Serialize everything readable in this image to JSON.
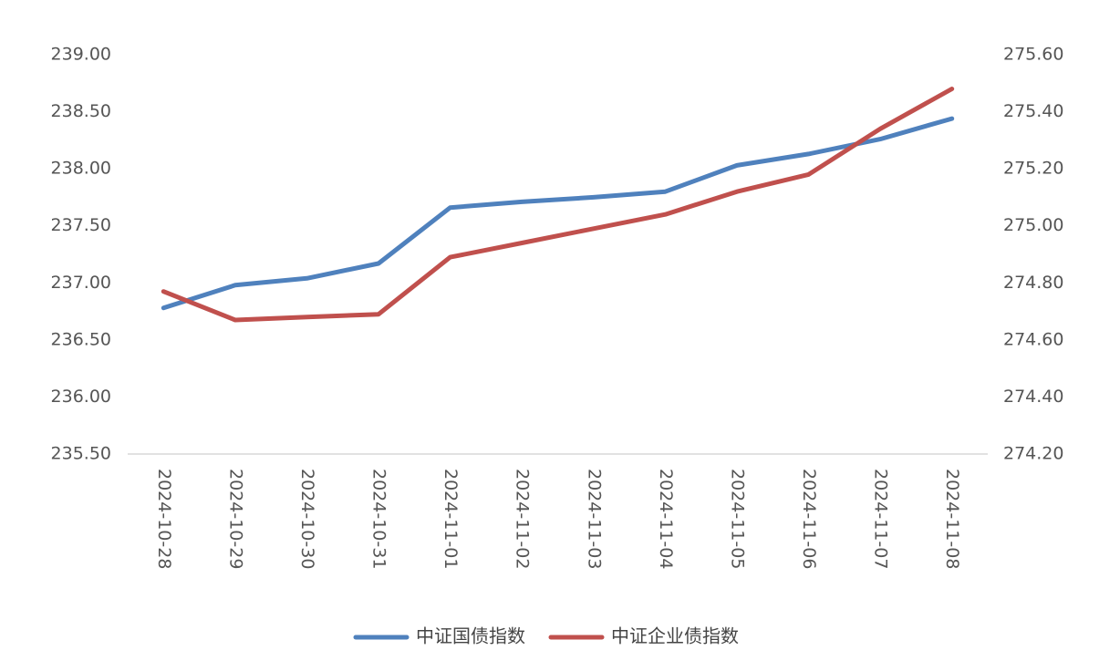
{
  "chart_data": {
    "type": "line",
    "categories": [
      "2024-10-28",
      "2024-10-29",
      "2024-10-30",
      "2024-10-31",
      "2024-11-01",
      "2024-11-02",
      "2024-11-03",
      "2024-11-04",
      "2024-11-05",
      "2024-11-06",
      "2024-11-07",
      "2024-11-08"
    ],
    "series": [
      {
        "name": "中证国债指数",
        "axis": "left",
        "color": "#4F81BD",
        "values": [
          236.78,
          236.98,
          237.04,
          237.17,
          237.66,
          237.71,
          237.75,
          237.8,
          238.03,
          238.13,
          238.26,
          238.44
        ]
      },
      {
        "name": "中证企业债指数",
        "axis": "right",
        "color": "#C0504D",
        "values": [
          274.77,
          274.67,
          274.68,
          274.69,
          274.89,
          274.94,
          274.99,
          275.04,
          275.12,
          275.18,
          275.34,
          275.48
        ]
      }
    ],
    "left_axis": {
      "min": 235.5,
      "max": 239.0,
      "step": 0.5,
      "tick_labels": [
        "235.50",
        "236.00",
        "236.50",
        "237.00",
        "237.50",
        "238.00",
        "238.50",
        "239.00"
      ]
    },
    "right_axis": {
      "min": 274.2,
      "max": 275.6,
      "step": 0.2,
      "tick_labels": [
        "274.20",
        "274.40",
        "274.60",
        "274.80",
        "275.00",
        "275.20",
        "275.40",
        "275.60"
      ]
    },
    "gridlines": false,
    "legend_position": "bottom-center"
  }
}
